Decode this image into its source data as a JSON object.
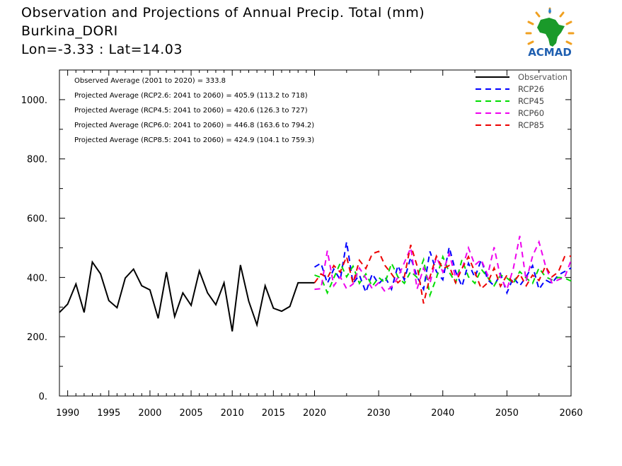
{
  "header": {
    "title": "Observation and Projections of Annual Precip. Total (mm)",
    "location": "Burkina_DORI",
    "coords": "Lon=-3.33 : Lat=14.03"
  },
  "logo": {
    "text": "ACMAD",
    "icon": "africa-map-logo-icon"
  },
  "colors": {
    "Observation": "#000000",
    "RCP26": "#0000ff",
    "RCP45": "#00dd00",
    "RCP60": "#ee00ee",
    "RCP85": "#ee0000"
  },
  "chart_data": {
    "type": "line",
    "xlim": [
      1989,
      2060
    ],
    "ylim": [
      0,
      1100
    ],
    "x_ticks": [
      1990,
      1995,
      2000,
      2005,
      2010,
      2015,
      2020,
      2030,
      2040,
      2050,
      2060
    ],
    "y_ticks": [
      0,
      200,
      400,
      600,
      800,
      1000
    ],
    "y_tick_labels": [
      "0.",
      "200.",
      "400.",
      "600.",
      "800.",
      "1000."
    ],
    "annotations": [
      "Observed Average (2001 to 2020) = 333.8",
      "Projected Average (RCP2.6: 2041 to 2060) = 405.9 (113.2 to 718)",
      "Projected Average (RCP4.5: 2041 to 2060) = 420.6 (126.3 to 727)",
      "Projected Average (RCP6.0: 2041 to 2060) = 446.8 (163.6 to 794.2)",
      "Projected Average (RCP8.5: 2041 to 2060) = 424.9 (104.1 to 759.3)"
    ],
    "legend_position": "top-right",
    "series": [
      {
        "name": "Observation",
        "style": "solid",
        "x": [
          1989,
          1990,
          1991,
          1992,
          1993,
          1994,
          1995,
          1996,
          1997,
          1998,
          1999,
          2000,
          2001,
          2002,
          2003,
          2004,
          2005,
          2006,
          2007,
          2008,
          2009,
          2010,
          2011,
          2012,
          2013,
          2014,
          2015,
          2016,
          2017,
          2018,
          2019,
          2020
        ],
        "y": [
          282,
          310,
          378,
          282,
          452,
          412,
          322,
          298,
          398,
          428,
          372,
          358,
          262,
          418,
          268,
          348,
          306,
          422,
          348,
          308,
          382,
          218,
          442,
          320,
          240,
          372,
          296,
          286,
          302,
          382,
          382,
          382
        ]
      },
      {
        "name": "RCP26",
        "style": "dashed",
        "x": [
          2020,
          2021,
          2022,
          2023,
          2024,
          2025,
          2026,
          2027,
          2028,
          2029,
          2030,
          2031,
          2032,
          2033,
          2034,
          2035,
          2036,
          2037,
          2038,
          2039,
          2040,
          2041,
          2042,
          2043,
          2044,
          2045,
          2046,
          2047,
          2048,
          2049,
          2050,
          2051,
          2052,
          2053,
          2054,
          2055,
          2056,
          2057,
          2058,
          2059,
          2060
        ],
        "y": [
          435,
          448,
          380,
          428,
          392,
          520,
          380,
          408,
          350,
          412,
          378,
          402,
          360,
          440,
          392,
          468,
          402,
          360,
          488,
          420,
          392,
          502,
          420,
          370,
          448,
          400,
          460,
          392,
          372,
          412,
          348,
          400,
          372,
          402,
          440,
          360,
          392,
          380,
          408,
          420,
          432
        ]
      },
      {
        "name": "RCP45",
        "style": "dashed",
        "x": [
          2020,
          2021,
          2022,
          2023,
          2024,
          2025,
          2026,
          2027,
          2028,
          2029,
          2030,
          2031,
          2032,
          2033,
          2034,
          2035,
          2036,
          2037,
          2038,
          2039,
          2040,
          2041,
          2042,
          2043,
          2044,
          2045,
          2046,
          2047,
          2048,
          2049,
          2050,
          2051,
          2052,
          2053,
          2054,
          2055,
          2056,
          2057,
          2058,
          2059,
          2060
        ],
        "y": [
          408,
          400,
          348,
          398,
          448,
          402,
          438,
          380,
          412,
          370,
          400,
          382,
          448,
          402,
          380,
          420,
          400,
          460,
          340,
          398,
          470,
          418,
          382,
          460,
          402,
          380,
          428,
          400,
          372,
          408,
          398,
          380,
          420,
          398,
          380,
          432,
          402,
          392,
          400,
          398,
          388
        ]
      },
      {
        "name": "RCP60",
        "style": "dashed",
        "x": [
          2020,
          2021,
          2022,
          2023,
          2024,
          2025,
          2026,
          2027,
          2028,
          2029,
          2030,
          2031,
          2032,
          2033,
          2034,
          2035,
          2036,
          2037,
          2038,
          2039,
          2040,
          2041,
          2042,
          2043,
          2044,
          2045,
          2046,
          2047,
          2048,
          2049,
          2050,
          2051,
          2052,
          2053,
          2054,
          2055,
          2056,
          2057,
          2058,
          2059,
          2060
        ],
        "y": [
          360,
          362,
          490,
          372,
          402,
          362,
          378,
          432,
          398,
          362,
          382,
          352,
          368,
          400,
          450,
          500,
          362,
          432,
          380,
          470,
          418,
          480,
          400,
          428,
          500,
          442,
          460,
          408,
          502,
          400,
          360,
          430,
          540,
          388,
          472,
          520,
          440,
          382,
          392,
          400,
          458
        ]
      },
      {
        "name": "RCP85",
        "style": "dashed",
        "x": [
          2020,
          2021,
          2022,
          2023,
          2024,
          2025,
          2026,
          2027,
          2028,
          2029,
          2030,
          2031,
          2032,
          2033,
          2034,
          2035,
          2036,
          2037,
          2038,
          2039,
          2040,
          2041,
          2042,
          2043,
          2044,
          2045,
          2046,
          2047,
          2048,
          2049,
          2050,
          2051,
          2052,
          2053,
          2054,
          2055,
          2056,
          2057,
          2058,
          2059,
          2060
        ],
        "y": [
          382,
          412,
          398,
          440,
          418,
          470,
          380,
          458,
          430,
          480,
          488,
          440,
          412,
          382,
          402,
          510,
          438,
          312,
          402,
          472,
          430,
          440,
          382,
          430,
          470,
          418,
          362,
          382,
          432,
          370,
          408,
          382,
          412,
          372,
          408,
          390,
          438,
          402,
          418,
          470,
          472
        ]
      }
    ]
  }
}
